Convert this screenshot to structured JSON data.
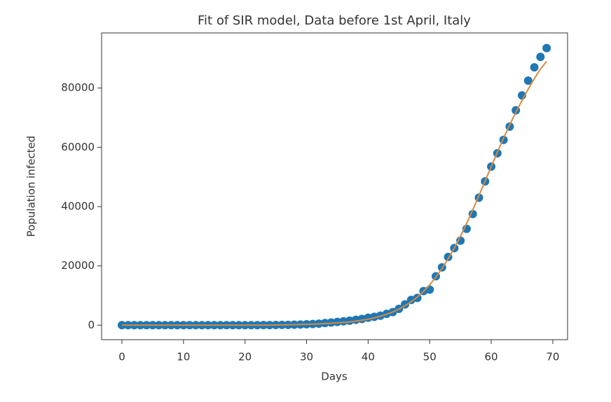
{
  "chart_data": {
    "type": "scatter",
    "title": "Fit of SIR model, Data before 1st April, Italy",
    "x_label": "Days",
    "y_label": "Population infected",
    "x": [
      0,
      1,
      2,
      3,
      4,
      5,
      6,
      7,
      8,
      9,
      10,
      11,
      12,
      13,
      14,
      15,
      16,
      17,
      18,
      19,
      20,
      21,
      22,
      23,
      24,
      25,
      26,
      27,
      28,
      29,
      30,
      31,
      32,
      33,
      34,
      35,
      36,
      37,
      38,
      39,
      40,
      41,
      42,
      43,
      44,
      45,
      46,
      47,
      48,
      49,
      50,
      51,
      52,
      53,
      54,
      55,
      56,
      57,
      58,
      59,
      60,
      61,
      62,
      63,
      64,
      65,
      66,
      67,
      68,
      69
    ],
    "series": [
      {
        "kind": "scatter",
        "color": "#1f77b4",
        "values": [
          0,
          0,
          0,
          0,
          0,
          0,
          0,
          0,
          0,
          0,
          0,
          0,
          0,
          0,
          0,
          0,
          0,
          0,
          0,
          0,
          0,
          0,
          10,
          20,
          40,
          60,
          80,
          100,
          150,
          200,
          300,
          400,
          500,
          700,
          900,
          1100,
          1300,
          1500,
          1800,
          2100,
          2500,
          2800,
          3200,
          3800,
          4400,
          5500,
          7000,
          8500,
          9200,
          11500,
          12000,
          16500,
          19500,
          23000,
          26000,
          28500,
          32500,
          37500,
          43000,
          48500,
          53500,
          58000,
          62500,
          67000,
          72500,
          77500,
          82500,
          87000,
          90500,
          93500
        ]
      },
      {
        "kind": "line",
        "color": "#d98a40",
        "values": [
          0,
          0,
          0,
          0,
          0,
          0,
          0,
          0,
          0,
          0,
          0,
          0,
          0,
          0,
          0,
          0,
          0,
          0,
          0,
          0,
          0,
          0,
          0,
          0,
          0,
          50,
          80,
          120,
          170,
          230,
          280,
          350,
          430,
          530,
          650,
          780,
          930,
          1100,
          1350,
          1650,
          2000,
          2450,
          3000,
          3650,
          4450,
          5400,
          6550,
          7900,
          9500,
          11400,
          13600,
          16200,
          19100,
          22400,
          26000,
          30000,
          34300,
          38900,
          43700,
          48600,
          53500,
          58400,
          63100,
          67600,
          71800,
          75800,
          79600,
          83200,
          86400,
          89000
        ]
      }
    ],
    "xlim": [
      -3.3,
      72.4
    ],
    "ylim": [
      -4900,
      98600
    ],
    "xticks": [
      0,
      10,
      20,
      30,
      40,
      50,
      60,
      70
    ],
    "yticks": [
      0,
      20000,
      40000,
      60000,
      80000
    ]
  }
}
